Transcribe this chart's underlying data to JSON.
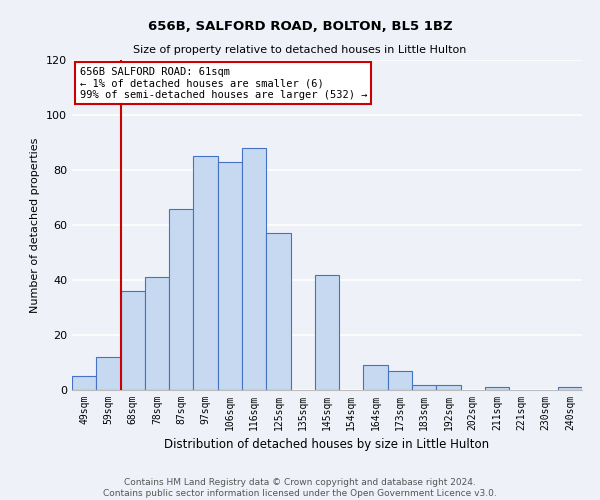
{
  "title": "656B, SALFORD ROAD, BOLTON, BL5 1BZ",
  "subtitle": "Size of property relative to detached houses in Little Hulton",
  "xlabel": "Distribution of detached houses by size in Little Hulton",
  "ylabel": "Number of detached properties",
  "footnote1": "Contains HM Land Registry data © Crown copyright and database right 2024.",
  "footnote2": "Contains public sector information licensed under the Open Government Licence v3.0.",
  "bin_labels": [
    "49sqm",
    "59sqm",
    "68sqm",
    "78sqm",
    "87sqm",
    "97sqm",
    "106sqm",
    "116sqm",
    "125sqm",
    "135sqm",
    "145sqm",
    "154sqm",
    "164sqm",
    "173sqm",
    "183sqm",
    "192sqm",
    "202sqm",
    "211sqm",
    "221sqm",
    "230sqm",
    "240sqm"
  ],
  "bar_values": [
    5,
    12,
    36,
    41,
    66,
    85,
    83,
    88,
    57,
    0,
    42,
    0,
    9,
    7,
    2,
    2,
    0,
    1,
    0,
    0,
    1
  ],
  "bar_color": "#c6d9f0",
  "bar_edge_color": "#4472c4",
  "vline_x": 1.5,
  "vline_color": "#cc0000",
  "annotation_text": "656B SALFORD ROAD: 61sqm\n← 1% of detached houses are smaller (6)\n99% of semi-detached houses are larger (532) →",
  "annotation_box_color": "#ffffff",
  "annotation_box_edge": "#cc0000",
  "ylim": [
    0,
    120
  ],
  "yticks": [
    0,
    20,
    40,
    60,
    80,
    100,
    120
  ],
  "bg_color": "#eef2f8",
  "grid_color": "#ffffff",
  "title_fontsize": 9.5,
  "subtitle_fontsize": 8,
  "ylabel_fontsize": 8,
  "xlabel_fontsize": 8.5,
  "tick_fontsize": 7,
  "footnote_fontsize": 6.5
}
